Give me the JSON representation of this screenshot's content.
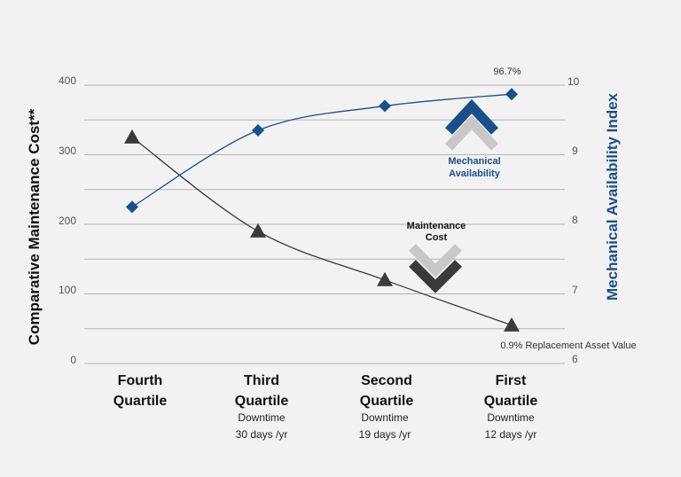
{
  "chart_data": {
    "type": "line",
    "categories": [
      {
        "name": "Fourth Quartile",
        "line1": "Fourth",
        "line2": "Quartile",
        "note1": "",
        "note2": ""
      },
      {
        "name": "Third Quartile",
        "line1": "Third",
        "line2": "Quartile",
        "note1": "Downtime",
        "note2": "30 days /yr"
      },
      {
        "name": "Second Quartile",
        "line1": "Second",
        "line2": "Quartile",
        "note1": "Downtime",
        "note2": "19 days /yr"
      },
      {
        "name": "First Quartile",
        "line1": "First",
        "line2": "Quartile",
        "note1": "Downtime",
        "note2": "12 days /yr"
      }
    ],
    "series": [
      {
        "name": "Maintenance Cost",
        "axis": "left",
        "marker": "triangle",
        "color": "#3a3a3a",
        "values": [
          325,
          190,
          120,
          55
        ]
      },
      {
        "name": "Mechanical Availability",
        "axis": "right",
        "marker": "diamond",
        "color": "#1a4f8a",
        "values": [
          8.25,
          9.35,
          9.7,
          9.87
        ]
      }
    ],
    "y_left": {
      "label": "Comparative Maintenance Cost**",
      "min": 0,
      "max": 400,
      "ticks": [
        "0",
        "100",
        "200",
        "300",
        "400"
      ]
    },
    "y_right": {
      "label": "Mechanical Availability Index",
      "min": 6,
      "max": 10,
      "ticks": [
        "6",
        "7",
        "8",
        "9",
        "10"
      ]
    },
    "annotations": {
      "availability_peak": "96.7%",
      "cost_end": "0.9% Replacement Asset Value",
      "availability_label_1": "Mechanical",
      "availability_label_2": "Availability",
      "cost_label_1": "Maintenance",
      "cost_label_2": "Cost"
    },
    "colors": {
      "background": "#f2f2f2",
      "grid": "#b3b3b3",
      "blue": "#1a4f8a",
      "dark": "#3a3a3a",
      "chevron_light": "#c8c8c8"
    }
  }
}
